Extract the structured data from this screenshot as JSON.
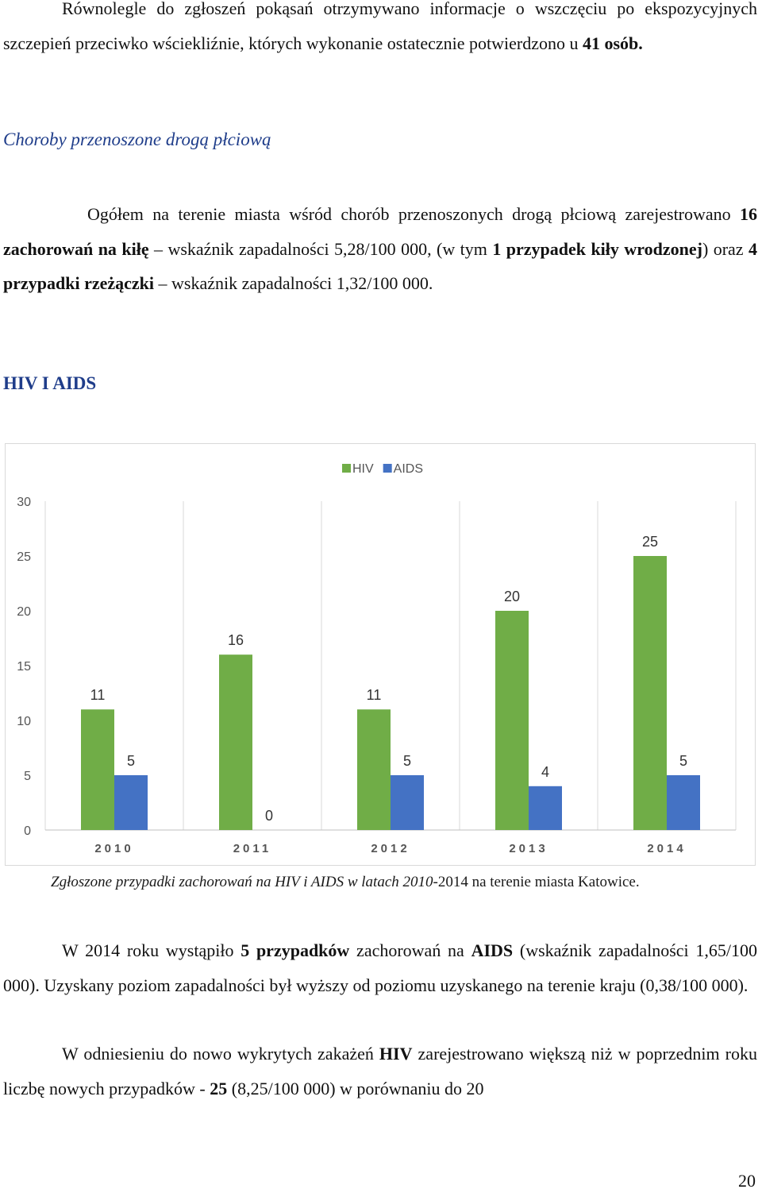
{
  "p1": {
    "text_a": "Równolegle do zgłoszeń pokąsań otrzymywano informacje o wszczęciu po ekspozycyjnych szczepień przeciwko wściekliźnie, których wykonanie ostatecznie potwierdzono u ",
    "bold_a": "41 osób",
    "text_b": "."
  },
  "heading_std": "Choroby przenoszone drogą płciową",
  "p2": {
    "text_a": "Ogółem na terenie miasta wśród chorób przenoszonych drogą płciową zarejestrowano ",
    "bold_a": "16 zachorowań na kiłę",
    "text_b": " – wskaźnik zapadalności 5,28/100 000, (w tym ",
    "bold_b": "1 przypadek kiły wrodzonej",
    "text_c": ") oraz ",
    "bold_c": "4 przypadki rzeżączki",
    "text_d": " – wskaźnik zapadalności 1,32/100 000."
  },
  "heading_hiv": "HIV I AIDS",
  "chart_data": {
    "type": "bar",
    "categories": [
      "2010",
      "2011",
      "2012",
      "2013",
      "2014"
    ],
    "series": [
      {
        "name": "HIV",
        "values": [
          11,
          16,
          11,
          20,
          25
        ],
        "color": "#70ad47"
      },
      {
        "name": "AIDS",
        "values": [
          5,
          0,
          5,
          4,
          5
        ],
        "color": "#4472c4"
      }
    ],
    "ylim": [
      0,
      30
    ],
    "yticks": [
      0,
      5,
      10,
      15,
      20,
      25,
      30
    ],
    "legend": "top-center",
    "grid": "vertical-separators"
  },
  "caption": {
    "italic_a": "Zgłoszone przypadki zachorowań na HIV i AIDS w latach 2010",
    "normal_a": "-2014 na terenie miasta  Katowice."
  },
  "p3": {
    "text_a": "W 2014 roku wystąpiło ",
    "bold_a": "5 przypadków",
    "text_b": " zachorowań na ",
    "bold_b": "AIDS",
    "text_c": " (wskaźnik zapadalności 1,65/100 000). Uzyskany poziom zapadalności był wyższy od poziomu uzyskanego na terenie kraju (0,38/100 000)."
  },
  "p4": {
    "text_a": "W odniesieniu do nowo wykrytych zakażeń ",
    "bold_a": "HIV",
    "text_b": " zarejestrowano  większą niż  w poprzednim roku liczbę nowych przypadków - ",
    "bold_b": "25",
    "text_c": " (8,25/100 000) w porównaniu do 20"
  },
  "page_number": "20"
}
